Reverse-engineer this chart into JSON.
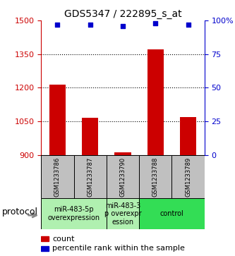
{
  "title": "GDS5347 / 222895_s_at",
  "samples": [
    "GSM1233786",
    "GSM1233787",
    "GSM1233790",
    "GSM1233788",
    "GSM1233789"
  ],
  "bar_values": [
    1215,
    1065,
    910,
    1370,
    1070
  ],
  "percentile_values": [
    97,
    97,
    96,
    98,
    97
  ],
  "ylim_left": [
    900,
    1500
  ],
  "ylim_right": [
    0,
    100
  ],
  "yticks_left": [
    900,
    1050,
    1200,
    1350,
    1500
  ],
  "yticks_right": [
    0,
    25,
    50,
    75,
    100
  ],
  "bar_color": "#cc0000",
  "percentile_color": "#0000cc",
  "bg_color": "#ffffff",
  "sample_box_color": "#c0c0c0",
  "proto_group1_color": "#b0f0b0",
  "proto_group2_color": "#b0f0b0",
  "proto_group3_color": "#33dd55",
  "proto_groups": [
    {
      "start": 0,
      "end": 1,
      "label": "miR-483-5p\noverexpression"
    },
    {
      "start": 2,
      "end": 2,
      "label": "miR-483-3\np overexpr\nession"
    },
    {
      "start": 3,
      "end": 4,
      "label": "control"
    }
  ],
  "legend_count_label": "count",
  "legend_percentile_label": "percentile rank within the sample",
  "protocol_label": "protocol",
  "grid_ticks": [
    1050,
    1200,
    1350
  ],
  "bar_width": 0.5,
  "title_fontsize": 10,
  "tick_fontsize": 8,
  "sample_fontsize": 6,
  "proto_fontsize": 7,
  "legend_fontsize": 8
}
